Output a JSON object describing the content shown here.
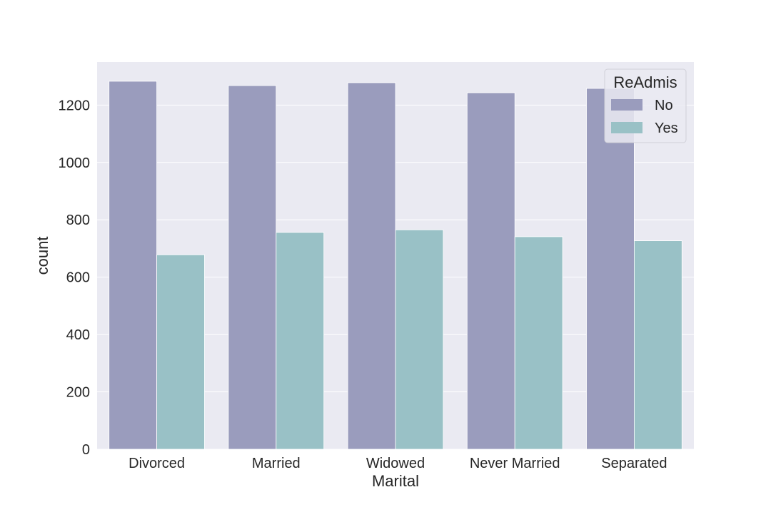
{
  "chart_data": {
    "type": "bar",
    "title": "",
    "xlabel": "Marital",
    "ylabel": "count",
    "categories": [
      "Divorced",
      "Married",
      "Widowed",
      "Never Married",
      "Separated"
    ],
    "series": [
      {
        "name": "No",
        "values": [
          1283,
          1268,
          1278,
          1243,
          1258
        ]
      },
      {
        "name": "Yes",
        "values": [
          678,
          756,
          765,
          741,
          727
        ]
      }
    ],
    "ylim": [
      0,
      1350
    ],
    "yticks": [
      0,
      200,
      400,
      600,
      800,
      1000,
      1200
    ],
    "grid": true,
    "legend": {
      "title": "ReAdmis",
      "placement": "top-right"
    },
    "colors": {
      "No": "#9a9cbd",
      "Yes": "#99c1c6",
      "plot_background": "#eaeaf2",
      "grid": "#ffffff",
      "text": "#262626"
    }
  }
}
